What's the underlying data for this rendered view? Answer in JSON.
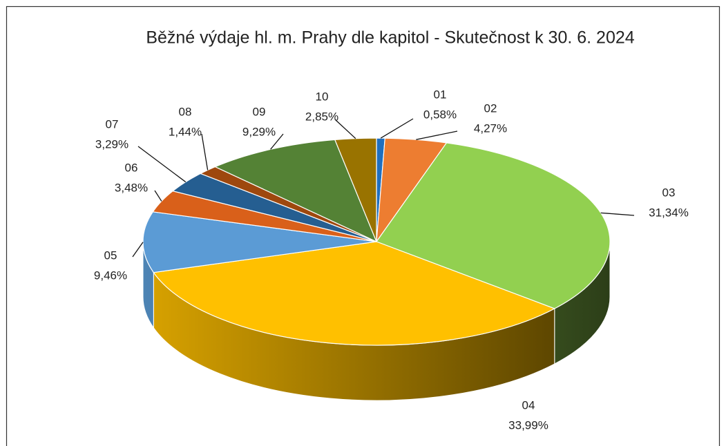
{
  "chart_data": {
    "type": "pie",
    "title": "Běžné výdaje hl. m. Prahy dle kapitol - Skutečnost k 30. 6. 2024",
    "categories": [
      "01",
      "02",
      "03",
      "04",
      "05",
      "06",
      "07",
      "08",
      "09",
      "10"
    ],
    "values": [
      0.58,
      4.27,
      31.34,
      33.99,
      9.46,
      3.48,
      3.29,
      1.44,
      9.29,
      2.85
    ],
    "value_labels": [
      "0,58%",
      "4,27%",
      "31,34%",
      "33,99%",
      "9,46%",
      "3,48%",
      "3,29%",
      "1,44%",
      "9,29%",
      "2,85%"
    ],
    "colors": [
      "#1f6fbf",
      "#ed7d31",
      "#92d050",
      "#ffc000",
      "#5b9bd5",
      "#d9601a",
      "#255e91",
      "#9e480e",
      "#548235",
      "#997300"
    ]
  }
}
